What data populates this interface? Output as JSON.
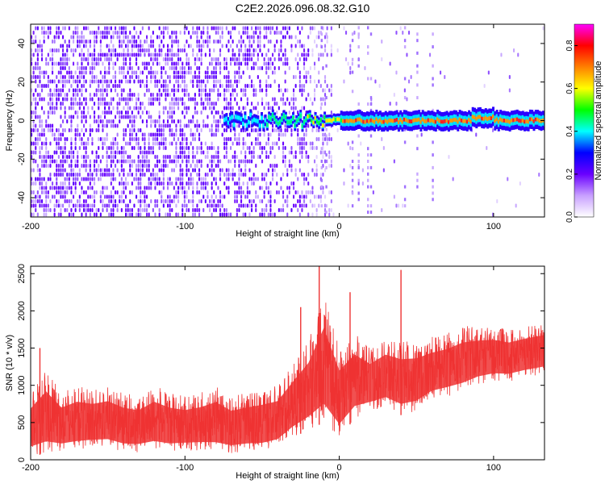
{
  "title": "C2E2.2026.096.08.32.G10",
  "chart_data": [
    {
      "type": "heatmap",
      "xlabel": "Height of straight line (km)",
      "ylabel": "Frequency (Hz)",
      "xlim": [
        -200,
        133
      ],
      "ylim": [
        -50,
        50
      ],
      "xticks": [
        -200,
        -100,
        0,
        100
      ],
      "yticks": [
        -40,
        -20,
        0,
        20,
        40
      ],
      "colorbar": {
        "label": "Normalized spectral amplitude",
        "range": [
          0,
          0.9
        ],
        "ticks": [
          "0.0",
          "0.2",
          "0.4",
          "0.6",
          "0.8"
        ]
      },
      "colors": [
        "#ffffff",
        "#c8a0ff",
        "#6a00ff",
        "#0000ff",
        "#00ffff",
        "#00ff00",
        "#ffff00",
        "#ff8000",
        "#ff0000",
        "#ff00ff"
      ],
      "signal": {
        "start_x": -75,
        "center_freq": 0,
        "peak_amplitude": 0.9
      }
    },
    {
      "type": "line",
      "xlabel": "Height of straight line (km)",
      "ylabel": "SNR (10 * v/v)",
      "xlim": [
        -200,
        133
      ],
      "ylim": [
        0,
        2600
      ],
      "xticks": [
        -200,
        -100,
        0,
        100
      ],
      "yticks": [
        0,
        500,
        1000,
        1500,
        2000,
        2500
      ],
      "color": "#ee3333",
      "series": [
        {
          "x": [
            -200,
            -190,
            -180,
            -170,
            -160,
            -150,
            -140,
            -130,
            -120,
            -110,
            -100,
            -90,
            -80,
            -70,
            -60,
            -50,
            -40,
            -30,
            -20,
            -10,
            0,
            10,
            20,
            30,
            40,
            50,
            60,
            70,
            80,
            90,
            100,
            110,
            120,
            133
          ],
          "upper": [
            900,
            1200,
            900,
            1000,
            950,
            1000,
            900,
            850,
            1000,
            900,
            850,
            900,
            1000,
            850,
            900,
            950,
            1000,
            1300,
            1600,
            2200,
            1500,
            1700,
            1500,
            1650,
            1600,
            1600,
            1650,
            1700,
            1800,
            1800,
            1800,
            1750,
            1800,
            1850
          ],
          "lower": [
            50,
            80,
            100,
            120,
            150,
            150,
            100,
            100,
            120,
            100,
            120,
            120,
            100,
            80,
            100,
            100,
            150,
            300,
            400,
            500,
            300,
            550,
            650,
            700,
            600,
            650,
            800,
            850,
            900,
            1000,
            1050,
            1050,
            1100,
            1150
          ]
        }
      ],
      "spikes": [
        {
          "x": -194,
          "y": 1500
        },
        {
          "x": -25,
          "y": 2050
        },
        {
          "x": -13,
          "y": 2600
        },
        {
          "x": 7,
          "y": 2250
        },
        {
          "x": 40,
          "y": 2550
        }
      ]
    }
  ]
}
